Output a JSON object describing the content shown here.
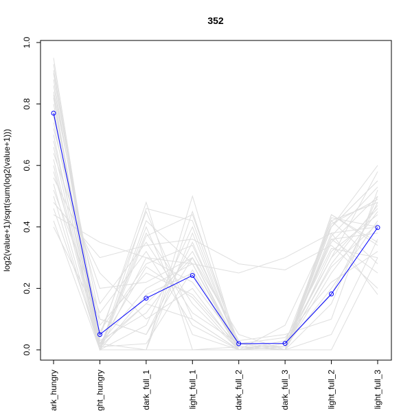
{
  "chart_data": {
    "type": "line",
    "title": "352",
    "xlabel": "",
    "ylabel": "log2(value+1)/sqrt(sum(log2(value+1)))",
    "ylim": [
      0,
      1
    ],
    "yticks": [
      "0.0",
      "0.2",
      "0.4",
      "0.6",
      "0.8",
      "1.0"
    ],
    "categories": [
      "dark_hungry",
      "light_hungry",
      "dark_full_1",
      "light_full_1",
      "dark_full_2",
      "dark_full_3",
      "light_full_2",
      "light_full_3"
    ],
    "category_labels_visible": [
      "ark_hungry",
      "ght_hungry",
      "dark_full_1",
      "light_full_1",
      "dark_full_2",
      "dark_full_3",
      "light_full_2",
      "light_full_3"
    ],
    "grid": false,
    "legend": "none",
    "colors": {
      "highlight": "#0000ff",
      "background_series": "#dedede"
    },
    "highlight_series": {
      "values": [
        0.77,
        0.05,
        0.168,
        0.242,
        0.02,
        0.021,
        0.182,
        0.398
      ]
    },
    "background_series": [
      [
        0.93,
        0.01,
        0.15,
        0.3,
        0.01,
        0.0,
        0.4,
        0.55
      ],
      [
        0.91,
        0.02,
        0.2,
        0.28,
        0.0,
        0.01,
        0.35,
        0.5
      ],
      [
        0.88,
        0.0,
        0.3,
        0.22,
        0.02,
        0.0,
        0.42,
        0.48
      ],
      [
        0.86,
        0.05,
        0.45,
        0.1,
        0.0,
        0.02,
        0.3,
        0.58
      ],
      [
        0.84,
        0.1,
        0.05,
        0.35,
        0.01,
        0.0,
        0.25,
        0.45
      ],
      [
        0.82,
        0.0,
        0.0,
        0.45,
        0.0,
        0.0,
        0.38,
        0.4
      ],
      [
        0.8,
        0.03,
        0.12,
        0.32,
        0.03,
        0.05,
        0.1,
        0.52
      ],
      [
        0.78,
        0.0,
        0.4,
        0.05,
        0.0,
        0.0,
        0.44,
        0.35
      ],
      [
        0.76,
        0.08,
        0.25,
        0.18,
        0.01,
        0.01,
        0.2,
        0.42
      ],
      [
        0.74,
        0.02,
        0.0,
        0.38,
        0.0,
        0.03,
        0.33,
        0.3
      ],
      [
        0.72,
        0.15,
        0.35,
        0.12,
        0.02,
        0.0,
        0.28,
        0.47
      ],
      [
        0.7,
        0.0,
        0.18,
        0.25,
        0.0,
        0.01,
        0.36,
        0.38
      ],
      [
        0.68,
        0.04,
        0.48,
        0.0,
        0.01,
        0.0,
        0.15,
        0.5
      ],
      [
        0.66,
        0.0,
        0.08,
        0.4,
        0.0,
        0.02,
        0.42,
        0.28
      ],
      [
        0.64,
        0.2,
        0.22,
        0.3,
        0.05,
        0.0,
        0.32,
        0.44
      ],
      [
        0.62,
        0.01,
        0.38,
        0.15,
        0.0,
        0.0,
        0.05,
        0.36
      ],
      [
        0.6,
        0.0,
        0.0,
        0.0,
        0.0,
        0.0,
        0.4,
        0.6
      ],
      [
        0.58,
        0.06,
        0.28,
        0.34,
        0.02,
        0.04,
        0.22,
        0.32
      ],
      [
        0.56,
        0.25,
        0.1,
        0.2,
        0.0,
        0.0,
        0.36,
        0.25
      ],
      [
        0.54,
        0.0,
        0.42,
        0.28,
        0.01,
        0.01,
        0.3,
        0.46
      ],
      [
        0.52,
        0.12,
        0.32,
        0.08,
        0.0,
        0.0,
        0.43,
        0.4
      ],
      [
        0.5,
        0.0,
        0.0,
        0.5,
        0.0,
        0.0,
        0.0,
        0.3
      ],
      [
        0.48,
        0.3,
        0.34,
        0.36,
        0.28,
        0.26,
        0.34,
        0.2
      ],
      [
        0.46,
        0.02,
        0.15,
        0.1,
        0.0,
        0.08,
        0.4,
        0.55
      ],
      [
        0.44,
        0.35,
        0.3,
        0.28,
        0.25,
        0.3,
        0.38,
        0.18
      ],
      [
        0.42,
        0.0,
        0.46,
        0.42,
        0.01,
        0.0,
        0.44,
        0.34
      ],
      [
        0.4,
        0.1,
        0.05,
        0.3,
        0.0,
        0.02,
        0.18,
        0.48
      ],
      [
        0.9,
        0.02,
        0.27,
        0.17,
        0.0,
        0.0,
        0.37,
        0.53
      ],
      [
        0.83,
        0.0,
        0.37,
        0.44,
        0.02,
        0.01,
        0.27,
        0.41
      ],
      [
        0.95,
        0.01,
        0.02,
        0.26,
        0.0,
        0.0,
        0.41,
        0.49
      ]
    ]
  }
}
